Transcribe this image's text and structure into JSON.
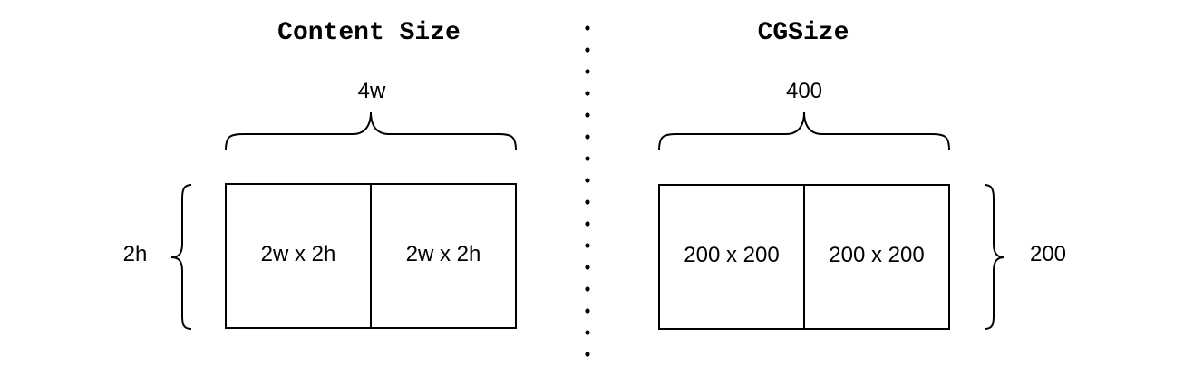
{
  "left_panel": {
    "title": "Content Size",
    "width_label": "4w",
    "height_label": "2h",
    "cell_1": "2w x 2h",
    "cell_2": "2w x 2h"
  },
  "right_panel": {
    "title": "CGSize",
    "width_label": "400",
    "height_label": "200",
    "cell_1": "200 x 200",
    "cell_2": "200 x 200"
  }
}
